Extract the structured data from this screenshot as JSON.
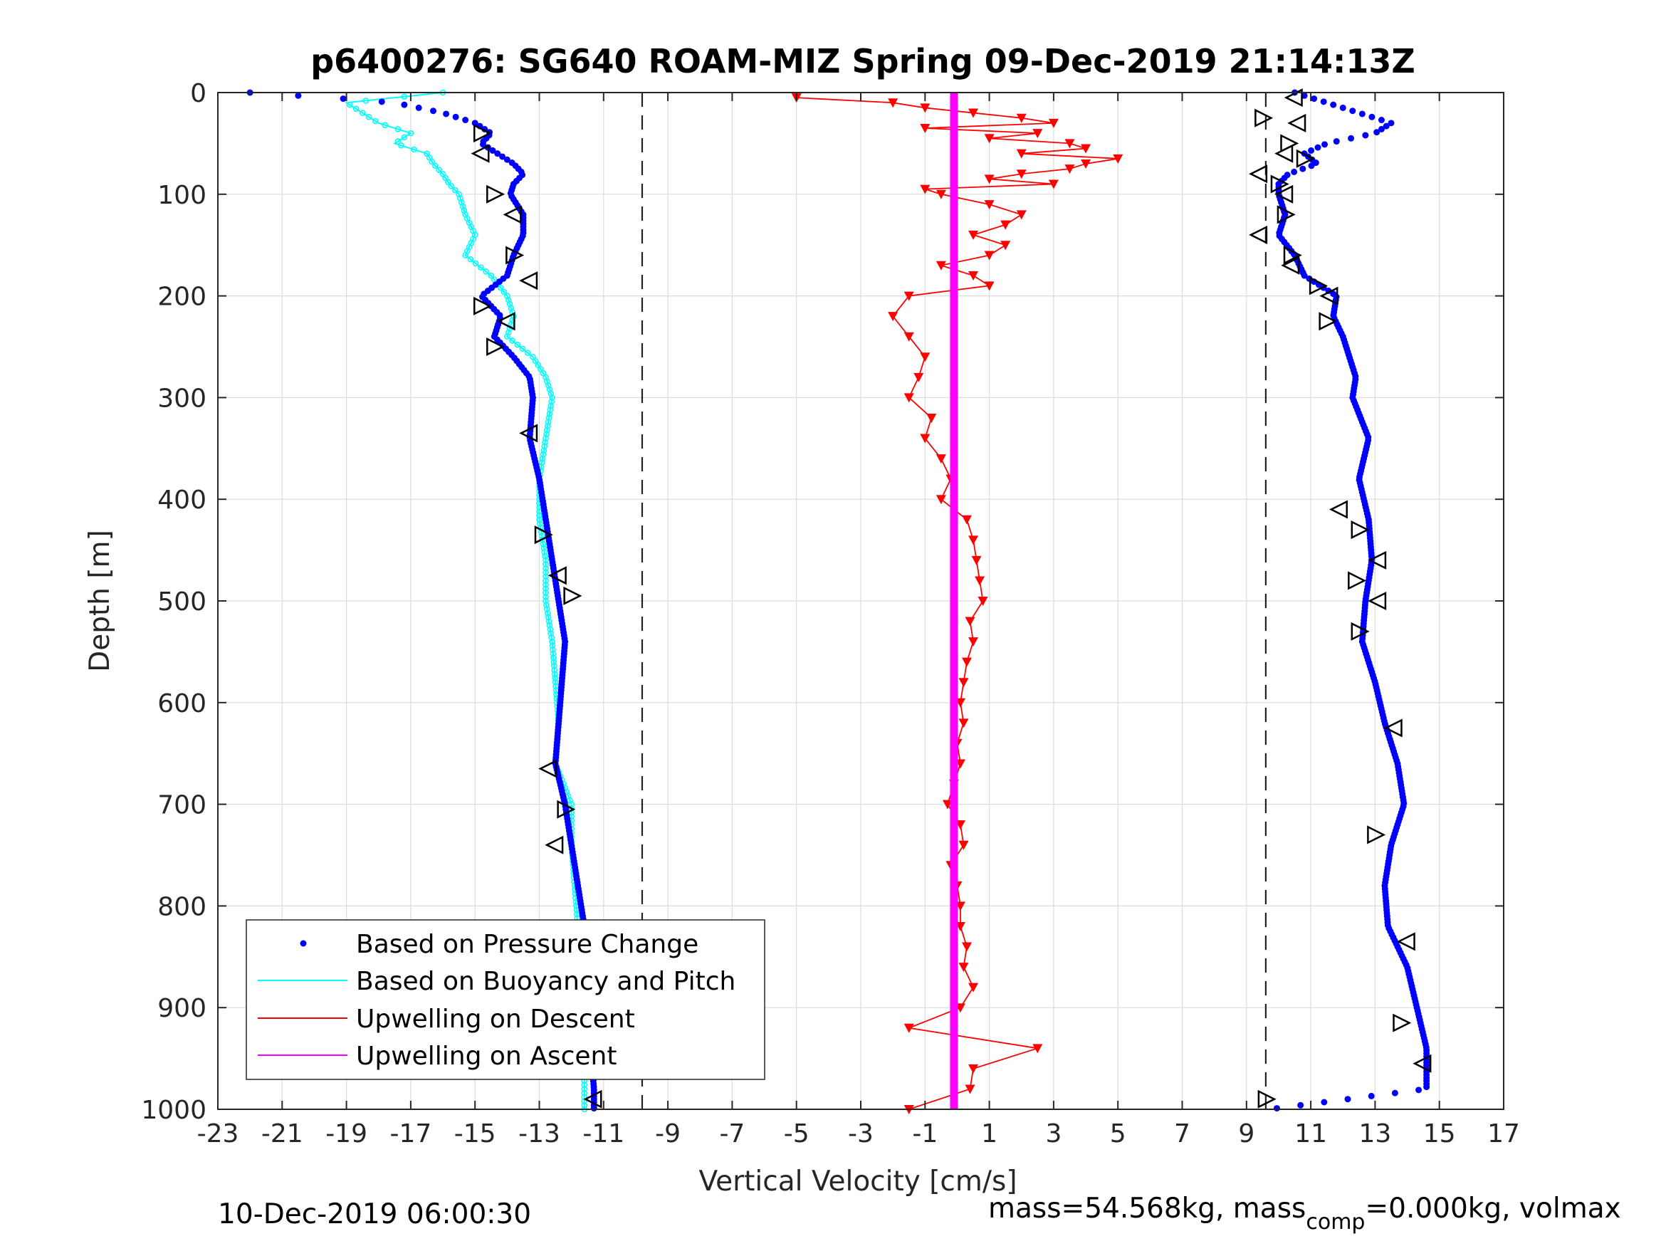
{
  "chart_data": {
    "type": "scatter",
    "title": "p6400276: SG640 ROAM-MIZ Spring 09-Dec-2019 21:14:13Z",
    "xlabel": "Vertical Velocity [cm/s]",
    "ylabel": "Depth [m]",
    "xlim": [
      -23,
      17
    ],
    "ylim": [
      0,
      1000
    ],
    "y_reversed": true,
    "grid": true,
    "xticks": [
      "-23",
      "-21",
      "-19",
      "-17",
      "-15",
      "-13",
      "-11",
      "-9",
      "-7",
      "-5",
      "-3",
      "-1",
      "1",
      "3",
      "5",
      "7",
      "9",
      "11",
      "13",
      "15",
      "17"
    ],
    "yticks": [
      "0",
      "100",
      "200",
      "300",
      "400",
      "500",
      "600",
      "700",
      "800",
      "900",
      "1000"
    ],
    "reference_lines_x": [
      -9.8,
      9.6
    ],
    "legend": {
      "position": "bottom-left",
      "entries": [
        "Based on Pressure Change",
        "Based on Buoyancy and Pitch",
        "Upwelling on Descent",
        "Upwelling on Ascent"
      ]
    },
    "colors": {
      "pressure": "#0000ff",
      "buoyancy": "#00ffff",
      "upwell_descent": "#ff0000",
      "upwell_ascent": "#ff00ff",
      "marker_outline": "#000000"
    },
    "series": [
      {
        "name": "Based on Pressure Change",
        "descent": {
          "depth": [
            0,
            5,
            10,
            20,
            30,
            40,
            50,
            60,
            70,
            80,
            90,
            100,
            110,
            120,
            140,
            160,
            180,
            200,
            220,
            240,
            260,
            280,
            300,
            340,
            380,
            420,
            460,
            500,
            540,
            580,
            620,
            660,
            700,
            740,
            780,
            820,
            860,
            900,
            940,
            980,
            1000
          ],
          "velocity": [
            -22,
            -19.5,
            -17.5,
            -16,
            -15,
            -14.5,
            -14.8,
            -14.3,
            -13.8,
            -13.5,
            -13.8,
            -13.9,
            -13.7,
            -13.5,
            -13.5,
            -13.8,
            -14.0,
            -14.8,
            -14.2,
            -14.4,
            -13.8,
            -13.3,
            -13.2,
            -13.3,
            -13.0,
            -12.8,
            -12.6,
            -12.4,
            -12.2,
            -12.3,
            -12.4,
            -12.5,
            -12.2,
            -12.0,
            -11.8,
            -11.6,
            -11.5,
            -11.4,
            -11.4,
            -11.3,
            -11.3
          ]
        },
        "ascent": {
          "depth": [
            0,
            10,
            20,
            30,
            40,
            50,
            60,
            70,
            80,
            90,
            100,
            120,
            140,
            160,
            180,
            200,
            220,
            240,
            260,
            280,
            300,
            340,
            380,
            420,
            460,
            500,
            540,
            580,
            620,
            660,
            700,
            740,
            780,
            820,
            860,
            900,
            940,
            980,
            1000
          ],
          "velocity": [
            10.5,
            11.5,
            12.5,
            13.5,
            13.0,
            11.5,
            10.8,
            11.2,
            10.3,
            10.0,
            10.0,
            10.2,
            10.0,
            10.5,
            10.8,
            11.8,
            11.7,
            12.0,
            12.2,
            12.4,
            12.3,
            12.8,
            12.5,
            12.8,
            12.9,
            12.7,
            12.6,
            13.0,
            13.3,
            13.7,
            13.9,
            13.5,
            13.3,
            13.4,
            14.0,
            14.3,
            14.6,
            14.6,
            9.7
          ]
        }
      },
      {
        "name": "Based on Buoyancy and Pitch",
        "descent": {
          "depth": [
            0,
            10,
            20,
            30,
            40,
            50,
            60,
            70,
            80,
            90,
            100,
            120,
            140,
            160,
            180,
            200,
            220,
            240,
            260,
            280,
            300,
            340,
            380,
            420,
            460,
            500,
            540,
            580,
            620,
            660,
            700,
            740,
            780,
            820,
            860,
            900,
            940,
            980,
            1000
          ],
          "velocity": [
            -16,
            -19,
            -18.5,
            -18,
            -17,
            -17.5,
            -16.5,
            -16.3,
            -16,
            -15.8,
            -15.5,
            -15.3,
            -15.0,
            -15.3,
            -14.5,
            -14.0,
            -13.8,
            -14.0,
            -13.2,
            -12.8,
            -12.6,
            -12.8,
            -13.0,
            -13.0,
            -12.8,
            -12.8,
            -12.6,
            -12.5,
            -12.4,
            -12.5,
            -12.0,
            -12.0,
            -11.9,
            -11.8,
            -11.7,
            -11.6,
            -11.6,
            -11.6,
            -11.6
          ]
        }
      },
      {
        "name": "Upwelling on Descent",
        "depth": [
          5,
          10,
          15,
          20,
          25,
          30,
          35,
          40,
          45,
          50,
          55,
          60,
          65,
          70,
          75,
          80,
          85,
          90,
          95,
          100,
          110,
          120,
          130,
          140,
          150,
          160,
          170,
          180,
          190,
          200,
          220,
          240,
          260,
          280,
          300,
          320,
          340,
          360,
          380,
          400,
          420,
          440,
          460,
          480,
          500,
          520,
          540,
          560,
          580,
          600,
          620,
          640,
          660,
          680,
          700,
          720,
          740,
          760,
          780,
          800,
          820,
          840,
          860,
          880,
          900,
          920,
          940,
          960,
          980,
          1000
        ],
        "velocity": [
          -5,
          -2,
          -1,
          0.5,
          2,
          3,
          -1,
          2.5,
          1,
          3.5,
          4,
          2,
          5,
          4,
          3.5,
          2,
          1,
          3,
          -1,
          -0.5,
          1,
          2,
          1.5,
          0.5,
          1.5,
          1,
          -0.5,
          0.5,
          1,
          -1.5,
          -2,
          -1.5,
          -1,
          -1.2,
          -1.5,
          -0.8,
          -1,
          -0.5,
          -0.2,
          -0.5,
          0.3,
          0.5,
          0.6,
          0.7,
          0.8,
          0.4,
          0.5,
          0.3,
          0.2,
          0.1,
          0.2,
          0.0,
          0.1,
          -0.1,
          -0.3,
          0.1,
          0.2,
          -0.2,
          0.0,
          0.1,
          0.1,
          0.3,
          0.2,
          0.5,
          0.1,
          -1.5,
          2.5,
          0.5,
          0.4,
          -1.5
        ]
      },
      {
        "name": "Upwelling on Ascent",
        "depth": [
          0,
          1000
        ],
        "velocity": [
          -0.1,
          -0.1
        ]
      }
    ],
    "orientation_markers": {
      "descent": {
        "depth": [
          40,
          60,
          100,
          120,
          160,
          185,
          210,
          225,
          250,
          335,
          435,
          475,
          495,
          665,
          705,
          740,
          915,
          990
        ],
        "velocity": [
          -14.8,
          -14.8,
          -14.4,
          -13.8,
          -13.8,
          -13.3,
          -14.8,
          -14.0,
          -14.4,
          -13.3,
          -12.9,
          -12.4,
          -12.0,
          -12.7,
          -12.2,
          -12.5,
          -11.5,
          -11.3
        ]
      },
      "ascent": {
        "depth": [
          5,
          25,
          30,
          50,
          60,
          65,
          80,
          90,
          100,
          120,
          140,
          160,
          170,
          190,
          200,
          225,
          410,
          430,
          460,
          480,
          500,
          530,
          625,
          730,
          835,
          915,
          955,
          990
        ],
        "velocity": [
          10.5,
          9.5,
          10.6,
          10.3,
          10.2,
          10.8,
          9.4,
          10.0,
          10.2,
          10.2,
          9.4,
          10.4,
          10.4,
          11.2,
          11.6,
          11.5,
          11.9,
          12.5,
          13.1,
          12.4,
          13.1,
          12.5,
          13.6,
          13.0,
          14.0,
          13.8,
          14.5,
          9.6
        ]
      }
    }
  },
  "footer": {
    "date": "10-Dec-2019 06:00:30",
    "mass_prefix": "mass=54.568kg, mass",
    "mass_sub": "comp",
    "mass_suffix": "=0.000kg, volmax"
  }
}
